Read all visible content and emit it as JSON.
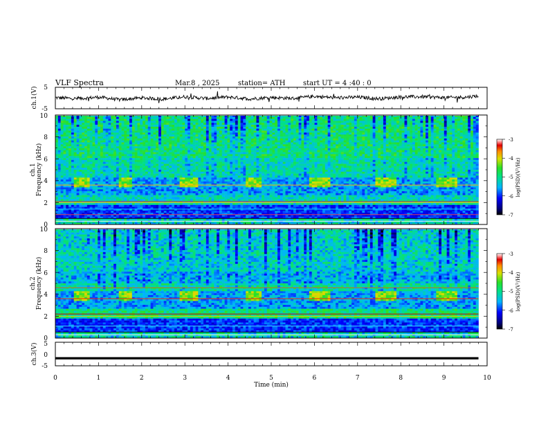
{
  "header": {
    "title": "VLF  Spectra",
    "date": "Mar.8  , 2025",
    "station": "station= ATH",
    "start_ut": "start  UT  =   4  :40 : 0"
  },
  "chart_data": [
    {
      "type": "line",
      "panel": "ch1",
      "ylabel": "ch.1(V)",
      "ytick_labels": [
        "5",
        "-5"
      ],
      "ylim": [
        -5,
        5
      ],
      "xlim": [
        0,
        10
      ],
      "x": [
        0,
        0.5,
        1.0,
        1.5,
        2.0,
        2.5,
        3.0,
        3.5,
        4.0,
        4.5,
        5.0,
        5.5,
        6.0,
        6.5,
        7.0,
        7.5,
        8.0,
        8.5,
        9.0,
        9.5,
        9.8
      ],
      "y": [
        0.2,
        -0.3,
        0.4,
        -0.8,
        0.1,
        -0.5,
        0.6,
        -0.2,
        0.5,
        -0.4,
        0.3,
        -0.2,
        0.8,
        0.1,
        0.4,
        -0.3,
        0.5,
        0.6,
        0.2,
        0.4,
        1.0
      ]
    },
    {
      "type": "heatmap",
      "panel": "ch1-spectrogram",
      "ylabel_top": "ch.1",
      "ylabel": "Frequency  (kHz)",
      "ytick_labels": [
        "10",
        "8",
        "6",
        "4",
        "2",
        "0"
      ],
      "ylim": [
        0,
        10
      ],
      "xlim": [
        0,
        9.8
      ],
      "colorbar_label": "log(PSD)(V²/Hz)",
      "colorbar_ticks": [
        "-3",
        "-4",
        "-5",
        "-6",
        "-7"
      ],
      "colorbar_range": [
        -7,
        -3
      ],
      "pulse_intervals_min": [
        [
          0.4,
          0.8
        ],
        [
          1.5,
          1.75
        ],
        [
          2.9,
          3.3
        ],
        [
          4.4,
          4.8
        ],
        [
          5.9,
          6.4
        ],
        [
          7.4,
          7.9
        ],
        [
          8.85,
          9.3
        ]
      ],
      "pulse_band_khz": [
        3.6,
        4.2
      ]
    },
    {
      "type": "heatmap",
      "panel": "ch2-spectrogram",
      "ylabel_top": "ch.2",
      "ylabel": "Frequency  (kHz)",
      "ytick_labels": [
        "10",
        "8",
        "6",
        "4",
        "2",
        "0"
      ],
      "ylim": [
        0,
        10
      ],
      "xlim": [
        0,
        9.8
      ],
      "colorbar_label": "log(PSD)(V²/Hz)",
      "colorbar_ticks": [
        "-3",
        "-4",
        "-5",
        "-6",
        "-7"
      ],
      "colorbar_range": [
        -7,
        -3
      ],
      "pulse_intervals_min": [
        [
          0.4,
          0.8
        ],
        [
          1.5,
          1.75
        ],
        [
          2.9,
          3.3
        ],
        [
          4.4,
          4.8
        ],
        [
          5.9,
          6.4
        ],
        [
          7.4,
          7.9
        ],
        [
          8.85,
          9.3
        ]
      ],
      "pulse_band_khz": [
        3.5,
        4.1
      ]
    },
    {
      "type": "line",
      "panel": "ch3",
      "ylabel": "ch.3(V)",
      "ytick_labels": [
        "5",
        "0",
        "-5"
      ],
      "ylim": [
        -5,
        5
      ],
      "xlim": [
        0,
        10
      ],
      "x": [
        0,
        9.8
      ],
      "y": [
        -1.8,
        -1.8
      ],
      "xlabel": "Time  (min)",
      "xtick_labels": [
        "0",
        "1",
        "2",
        "3",
        "4",
        "5",
        "6",
        "7",
        "8",
        "9",
        "10"
      ]
    }
  ]
}
